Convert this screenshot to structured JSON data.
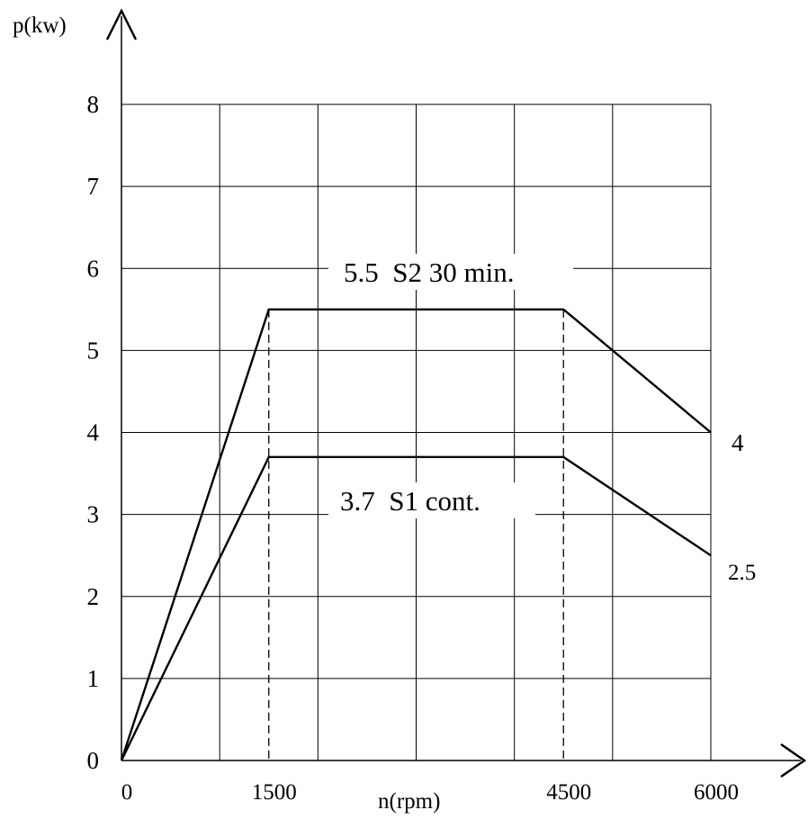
{
  "chart_data": {
    "type": "line",
    "xlabel": "n(rpm)",
    "ylabel": "p(kw)",
    "xlim": [
      0,
      6000
    ],
    "ylim": [
      0,
      8
    ],
    "grid": true,
    "x_ticks": [
      "0",
      "1500",
      "4500",
      "6000"
    ],
    "y_ticks": [
      "0",
      "1",
      "2",
      "3",
      "4",
      "5",
      "6",
      "7",
      "8"
    ],
    "series": [
      {
        "label": "5.5  S2 30 min.",
        "end_label": "4",
        "points": [
          [
            0,
            0
          ],
          [
            1500,
            5.5
          ],
          [
            4500,
            5.5
          ],
          [
            6000,
            4
          ]
        ]
      },
      {
        "label": "3.7  S1 cont.",
        "end_label": "2.5",
        "points": [
          [
            0,
            0
          ],
          [
            1500,
            3.7
          ],
          [
            4500,
            3.7
          ],
          [
            6000,
            2.5
          ]
        ]
      }
    ],
    "reference_lines_x": [
      1500,
      4500
    ]
  }
}
